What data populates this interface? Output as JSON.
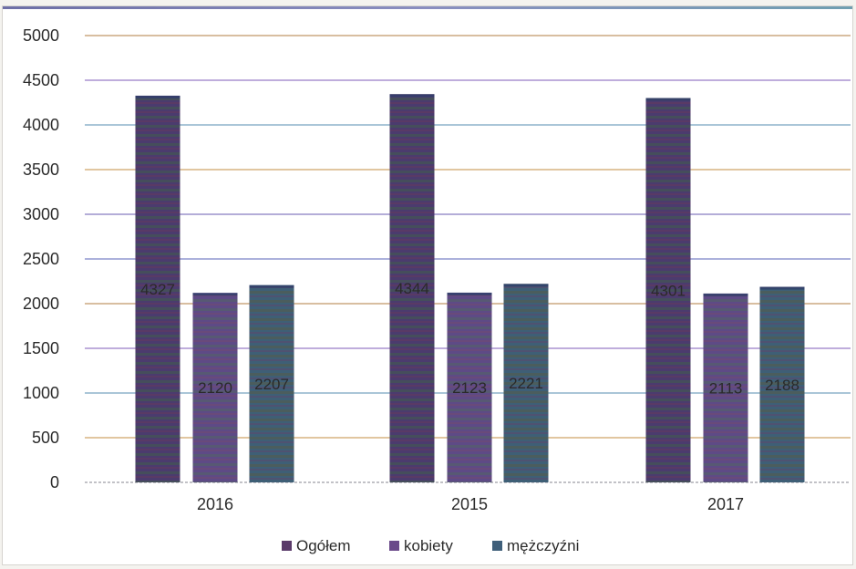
{
  "chart_data": {
    "type": "bar",
    "categories": [
      "2016",
      "2015",
      "2017"
    ],
    "series": [
      {
        "name": "Ogółem",
        "values": [
          4327,
          4344,
          4301
        ]
      },
      {
        "name": "kobiety",
        "values": [
          2120,
          2123,
          2113
        ]
      },
      {
        "name": "mężczyźni",
        "values": [
          2207,
          2221,
          2188
        ]
      }
    ],
    "ylim": [
      0,
      5000
    ],
    "yticks": [
      "0",
      "500",
      "1000",
      "1500",
      "2000",
      "2500",
      "3000",
      "3500",
      "4000",
      "4500",
      "5000"
    ],
    "grid": true,
    "legend_position": "bottom",
    "colors": {
      "Ogółem": "#5a3a6a",
      "kobiety": "#6a4a8a",
      "mężczyźni": "#3f5f7a",
      "grid": "#7a7fc4",
      "axis_text": "#2b2b2b"
    }
  }
}
